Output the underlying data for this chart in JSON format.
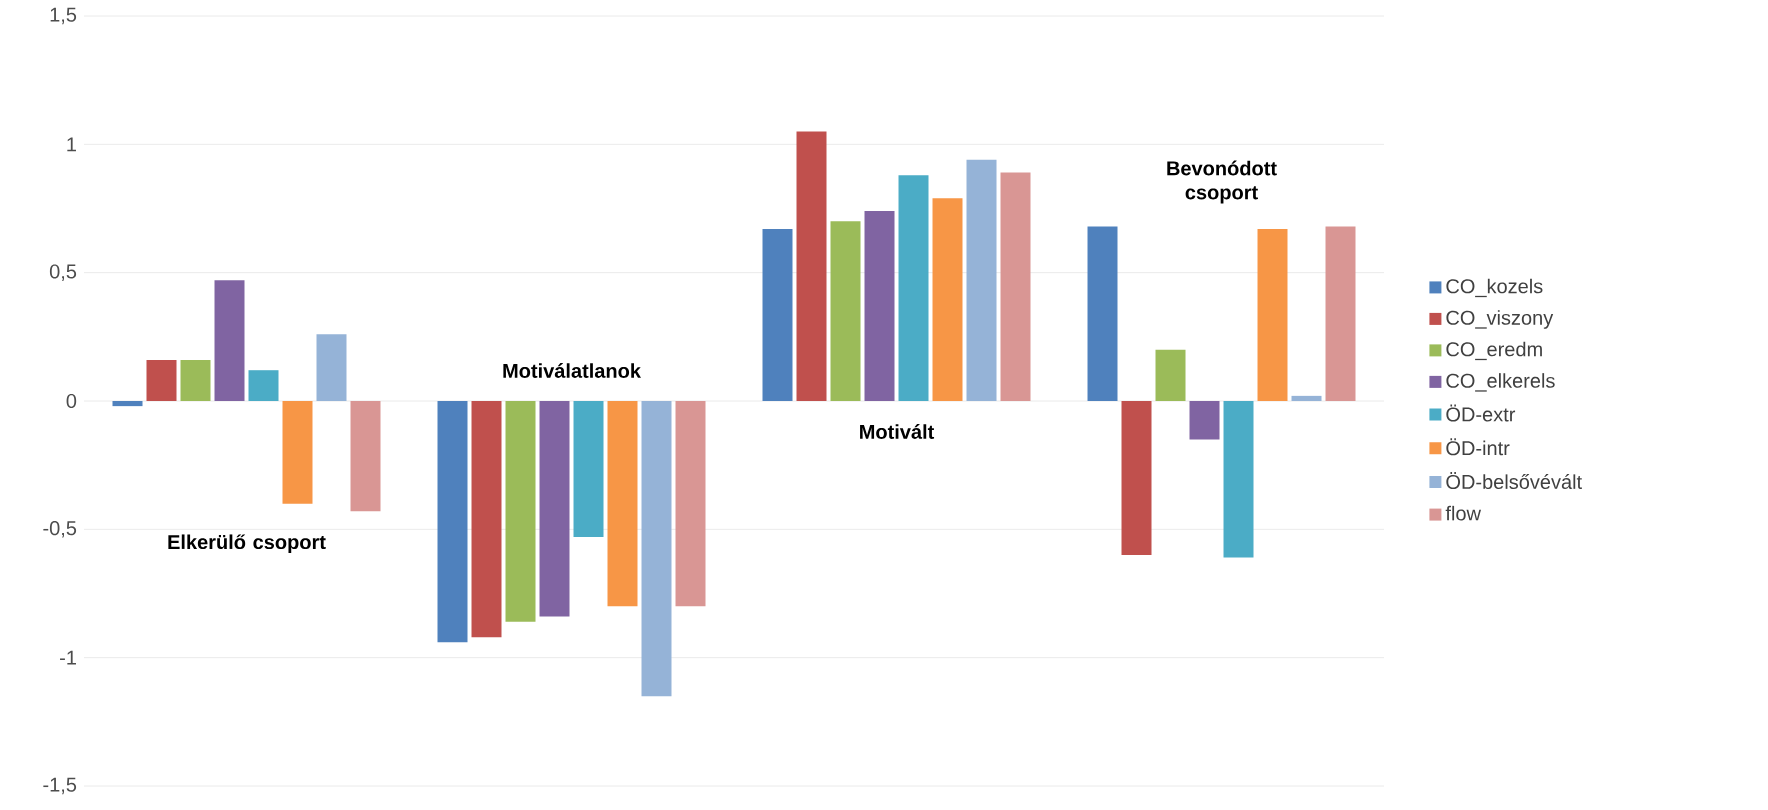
{
  "chart_data": {
    "type": "bar",
    "categories": [
      "Elkerülő csoport",
      "Motiválatlanok",
      "Motivált",
      "Bevonódott csoport"
    ],
    "series": [
      {
        "name": "CO_kozels",
        "color": "#4f81bd",
        "values": [
          -0.02,
          -0.94,
          0.67,
          0.68
        ]
      },
      {
        "name": "CO_viszony",
        "color": "#c0504d",
        "values": [
          0.16,
          -0.92,
          1.05,
          -0.6
        ]
      },
      {
        "name": "CO_eredm",
        "color": "#9bbb59",
        "values": [
          0.16,
          -0.86,
          0.7,
          0.2
        ]
      },
      {
        "name": "CO_elkerels",
        "color": "#8064a2",
        "values": [
          0.47,
          -0.84,
          0.74,
          -0.15
        ]
      },
      {
        "name": "ÖD-extr",
        "color": "#4bacc6",
        "values": [
          0.12,
          -0.53,
          0.88,
          -0.61
        ]
      },
      {
        "name": "ÖD-intr",
        "color": "#f79646",
        "values": [
          -0.4,
          -0.8,
          0.79,
          0.67
        ]
      },
      {
        "name": "ÖD-belsővévált",
        "color": "#95b3d7",
        "values": [
          0.26,
          -1.15,
          0.94,
          0.02
        ]
      },
      {
        "name": "flow",
        "color": "#d99694",
        "values": [
          -0.43,
          -0.8,
          0.89,
          0.68
        ]
      }
    ],
    "ylim": [
      -1.5,
      1.5
    ],
    "yticks": [
      {
        "value": -1.5,
        "label": "-1,5"
      },
      -1,
      {
        "value": -0.5,
        "label": "-0,5"
      },
      0,
      {
        "value": 0.5,
        "label": "0,5"
      },
      1,
      {
        "value": 1.5,
        "label": "1,5"
      }
    ],
    "grid": "y",
    "legend": "right"
  }
}
